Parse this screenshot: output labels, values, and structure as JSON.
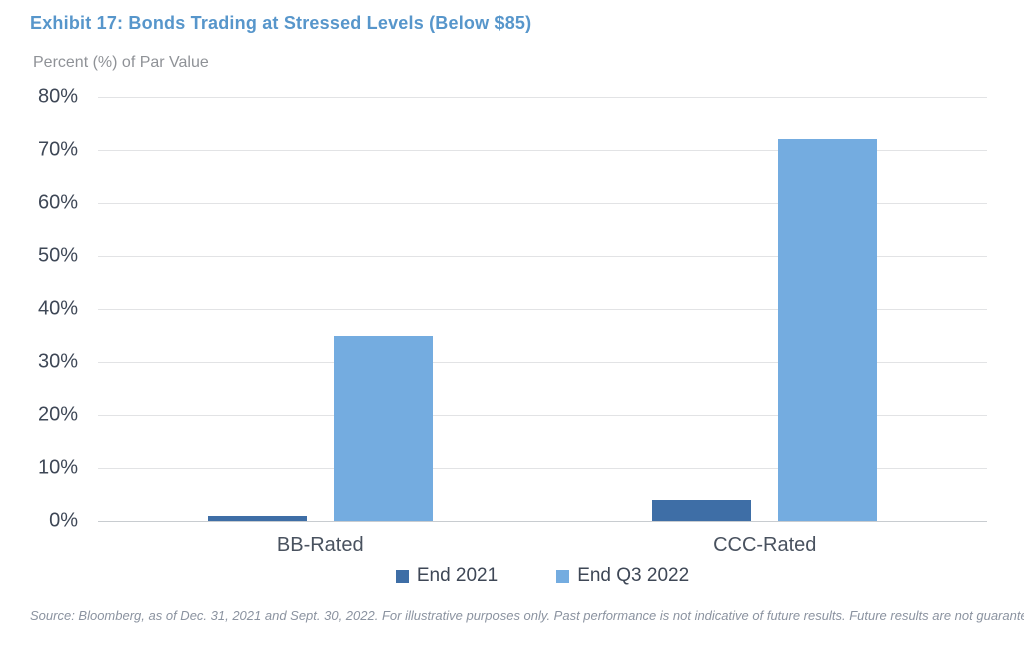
{
  "header": {
    "title": "Exhibit 17: Bonds Trading at Stressed Levels (Below $85)"
  },
  "chart_data": {
    "type": "bar",
    "title": "Exhibit 17: Bonds Trading at Stressed Levels (Below $85)",
    "axis_title": "Percent (%) of Par Value",
    "categories": [
      "BB-Rated",
      "CCC-Rated"
    ],
    "series": [
      {
        "name": "End 2021",
        "color": "#3E6EA6",
        "values": [
          1,
          4
        ]
      },
      {
        "name": "End Q3 2022",
        "color": "#74ACE0",
        "values": [
          35,
          72
        ]
      }
    ],
    "ylim": [
      0,
      80
    ],
    "ytick_step": 10,
    "ytick_labels": [
      "0%",
      "10%",
      "20%",
      "30%",
      "40%",
      "50%",
      "60%",
      "70%",
      "80%"
    ],
    "grid": "horizontal",
    "legend_position": "bottom"
  },
  "footer": {
    "source": "Source: Bloomberg, as of Dec. 31, 2021 and Sept. 30, 2022. For illustrative purposes only. Past performance is not indicative of future results. Future results are not guaranteed."
  },
  "colors": {
    "title_blue": "#5796CB",
    "axis_text": "#3E4756",
    "subtitle_gray": "#8F9297",
    "gridline": "#E2E3E5",
    "baseline": "#C8CCD0",
    "series_dark": "#3E6EA6",
    "series_light": "#74ACE0",
    "source_gray": "#8B93A0"
  }
}
